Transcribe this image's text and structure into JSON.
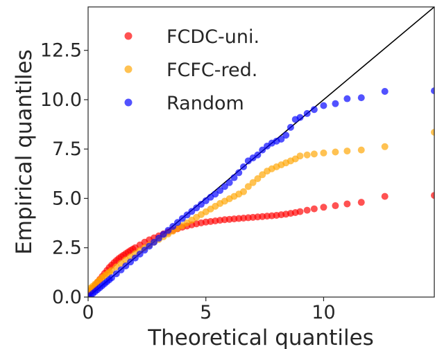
{
  "chart_data": {
    "type": "scatter",
    "title": "",
    "xlabel": "Theoretical quantiles",
    "ylabel": "Empirical quantiles",
    "xlim": [
      0,
      14.7
    ],
    "ylim": [
      0,
      14.7
    ],
    "xticks": [
      0,
      5,
      10
    ],
    "yticks": [
      0.0,
      2.5,
      5.0,
      7.5,
      10.0,
      12.5
    ],
    "xtick_labels": [
      "0",
      "5",
      "10"
    ],
    "ytick_labels": [
      "0.0",
      "2.5",
      "5.0",
      "7.5",
      "10.0",
      "12.5"
    ],
    "reference_line": "y = x",
    "grid": false,
    "legend_position": "top-left",
    "series": [
      {
        "name": "FCDC-uni.",
        "color": "#ff0000",
        "x": [
          0.02,
          0.1,
          0.2,
          0.3,
          0.4,
          0.5,
          0.6,
          0.7,
          0.8,
          0.9,
          1.0,
          1.1,
          1.2,
          1.3,
          1.4,
          1.5,
          1.6,
          1.7,
          1.8,
          1.9,
          2.0,
          2.2,
          2.4,
          2.6,
          2.8,
          3.0,
          3.2,
          3.4,
          3.6,
          3.8,
          4.0,
          4.2,
          4.4,
          4.6,
          4.8,
          5.0,
          5.2,
          5.4,
          5.6,
          5.8,
          6.0,
          6.2,
          6.4,
          6.6,
          6.8,
          7.0,
          7.2,
          7.4,
          7.6,
          7.8,
          8.0,
          8.2,
          8.4,
          8.6,
          8.8,
          9.0,
          9.3,
          9.6,
          10.0,
          10.5,
          11.0,
          11.6,
          12.6,
          14.7
        ],
        "values": [
          0.15,
          0.3,
          0.45,
          0.6,
          0.75,
          0.9,
          1.05,
          1.2,
          1.35,
          1.5,
          1.62,
          1.74,
          1.85,
          1.95,
          2.04,
          2.12,
          2.2,
          2.28,
          2.36,
          2.43,
          2.5,
          2.64,
          2.78,
          2.9,
          3.0,
          3.1,
          3.2,
          3.3,
          3.38,
          3.46,
          3.54,
          3.6,
          3.66,
          3.71,
          3.76,
          3.8,
          3.83,
          3.86,
          3.89,
          3.92,
          3.94,
          3.96,
          3.98,
          4.0,
          4.02,
          4.04,
          4.06,
          4.08,
          4.1,
          4.12,
          4.14,
          4.17,
          4.2,
          4.24,
          4.28,
          4.33,
          4.4,
          4.47,
          4.55,
          4.63,
          4.72,
          4.8,
          5.1,
          5.15
        ]
      },
      {
        "name": "FCFC-red.",
        "color": "#ffa500",
        "x": [
          0.02,
          0.1,
          0.2,
          0.3,
          0.4,
          0.5,
          0.6,
          0.7,
          0.8,
          0.9,
          1.0,
          1.2,
          1.4,
          1.6,
          1.8,
          2.0,
          2.2,
          2.4,
          2.6,
          2.8,
          3.0,
          3.2,
          3.4,
          3.6,
          3.8,
          4.0,
          4.2,
          4.4,
          4.6,
          4.8,
          5.0,
          5.2,
          5.4,
          5.6,
          5.8,
          6.0,
          6.2,
          6.4,
          6.6,
          6.8,
          7.0,
          7.2,
          7.4,
          7.6,
          7.8,
          8.0,
          8.2,
          8.4,
          8.6,
          8.8,
          9.0,
          9.3,
          9.6,
          10.0,
          10.5,
          11.0,
          11.6,
          12.6,
          14.7
        ],
        "values": [
          0.35,
          0.45,
          0.55,
          0.66,
          0.77,
          0.88,
          0.98,
          1.08,
          1.17,
          1.26,
          1.35,
          1.53,
          1.71,
          1.88,
          2.04,
          2.2,
          2.36,
          2.5,
          2.64,
          2.78,
          2.92,
          3.06,
          3.2,
          3.34,
          3.48,
          3.62,
          3.76,
          3.9,
          4.04,
          4.18,
          4.32,
          4.46,
          4.6,
          4.74,
          4.86,
          4.98,
          5.1,
          5.22,
          5.34,
          5.6,
          5.8,
          6.0,
          6.2,
          6.38,
          6.5,
          6.6,
          6.7,
          6.8,
          6.9,
          7.0,
          7.15,
          7.2,
          7.25,
          7.3,
          7.35,
          7.4,
          7.45,
          7.62,
          8.35
        ]
      },
      {
        "name": "Random",
        "color": "#0000ff",
        "x": [
          0.02,
          0.1,
          0.2,
          0.3,
          0.4,
          0.5,
          0.6,
          0.7,
          0.8,
          0.9,
          1.0,
          1.2,
          1.4,
          1.6,
          1.8,
          2.0,
          2.2,
          2.4,
          2.6,
          2.8,
          3.0,
          3.2,
          3.4,
          3.6,
          3.8,
          4.0,
          4.2,
          4.4,
          4.6,
          4.8,
          5.0,
          5.2,
          5.4,
          5.6,
          5.8,
          6.0,
          6.2,
          6.4,
          6.6,
          6.8,
          7.0,
          7.2,
          7.4,
          7.6,
          7.8,
          8.0,
          8.2,
          8.4,
          8.6,
          8.8,
          9.0,
          9.3,
          9.6,
          10.0,
          10.5,
          11.0,
          11.6,
          12.6,
          14.7
        ],
        "values": [
          0.0,
          0.08,
          0.18,
          0.28,
          0.38,
          0.48,
          0.58,
          0.68,
          0.78,
          0.88,
          0.98,
          1.18,
          1.38,
          1.58,
          1.78,
          1.98,
          2.18,
          2.38,
          2.58,
          2.78,
          2.98,
          3.18,
          3.38,
          3.58,
          3.78,
          3.98,
          4.16,
          4.34,
          4.52,
          4.7,
          4.88,
          5.06,
          5.22,
          5.4,
          5.6,
          5.8,
          6.05,
          6.3,
          6.6,
          6.9,
          7.05,
          7.2,
          7.45,
          7.65,
          7.8,
          7.9,
          8.0,
          8.2,
          8.6,
          9.0,
          9.1,
          9.3,
          9.5,
          9.7,
          9.8,
          10.05,
          10.1,
          10.42,
          10.45
        ]
      }
    ]
  }
}
